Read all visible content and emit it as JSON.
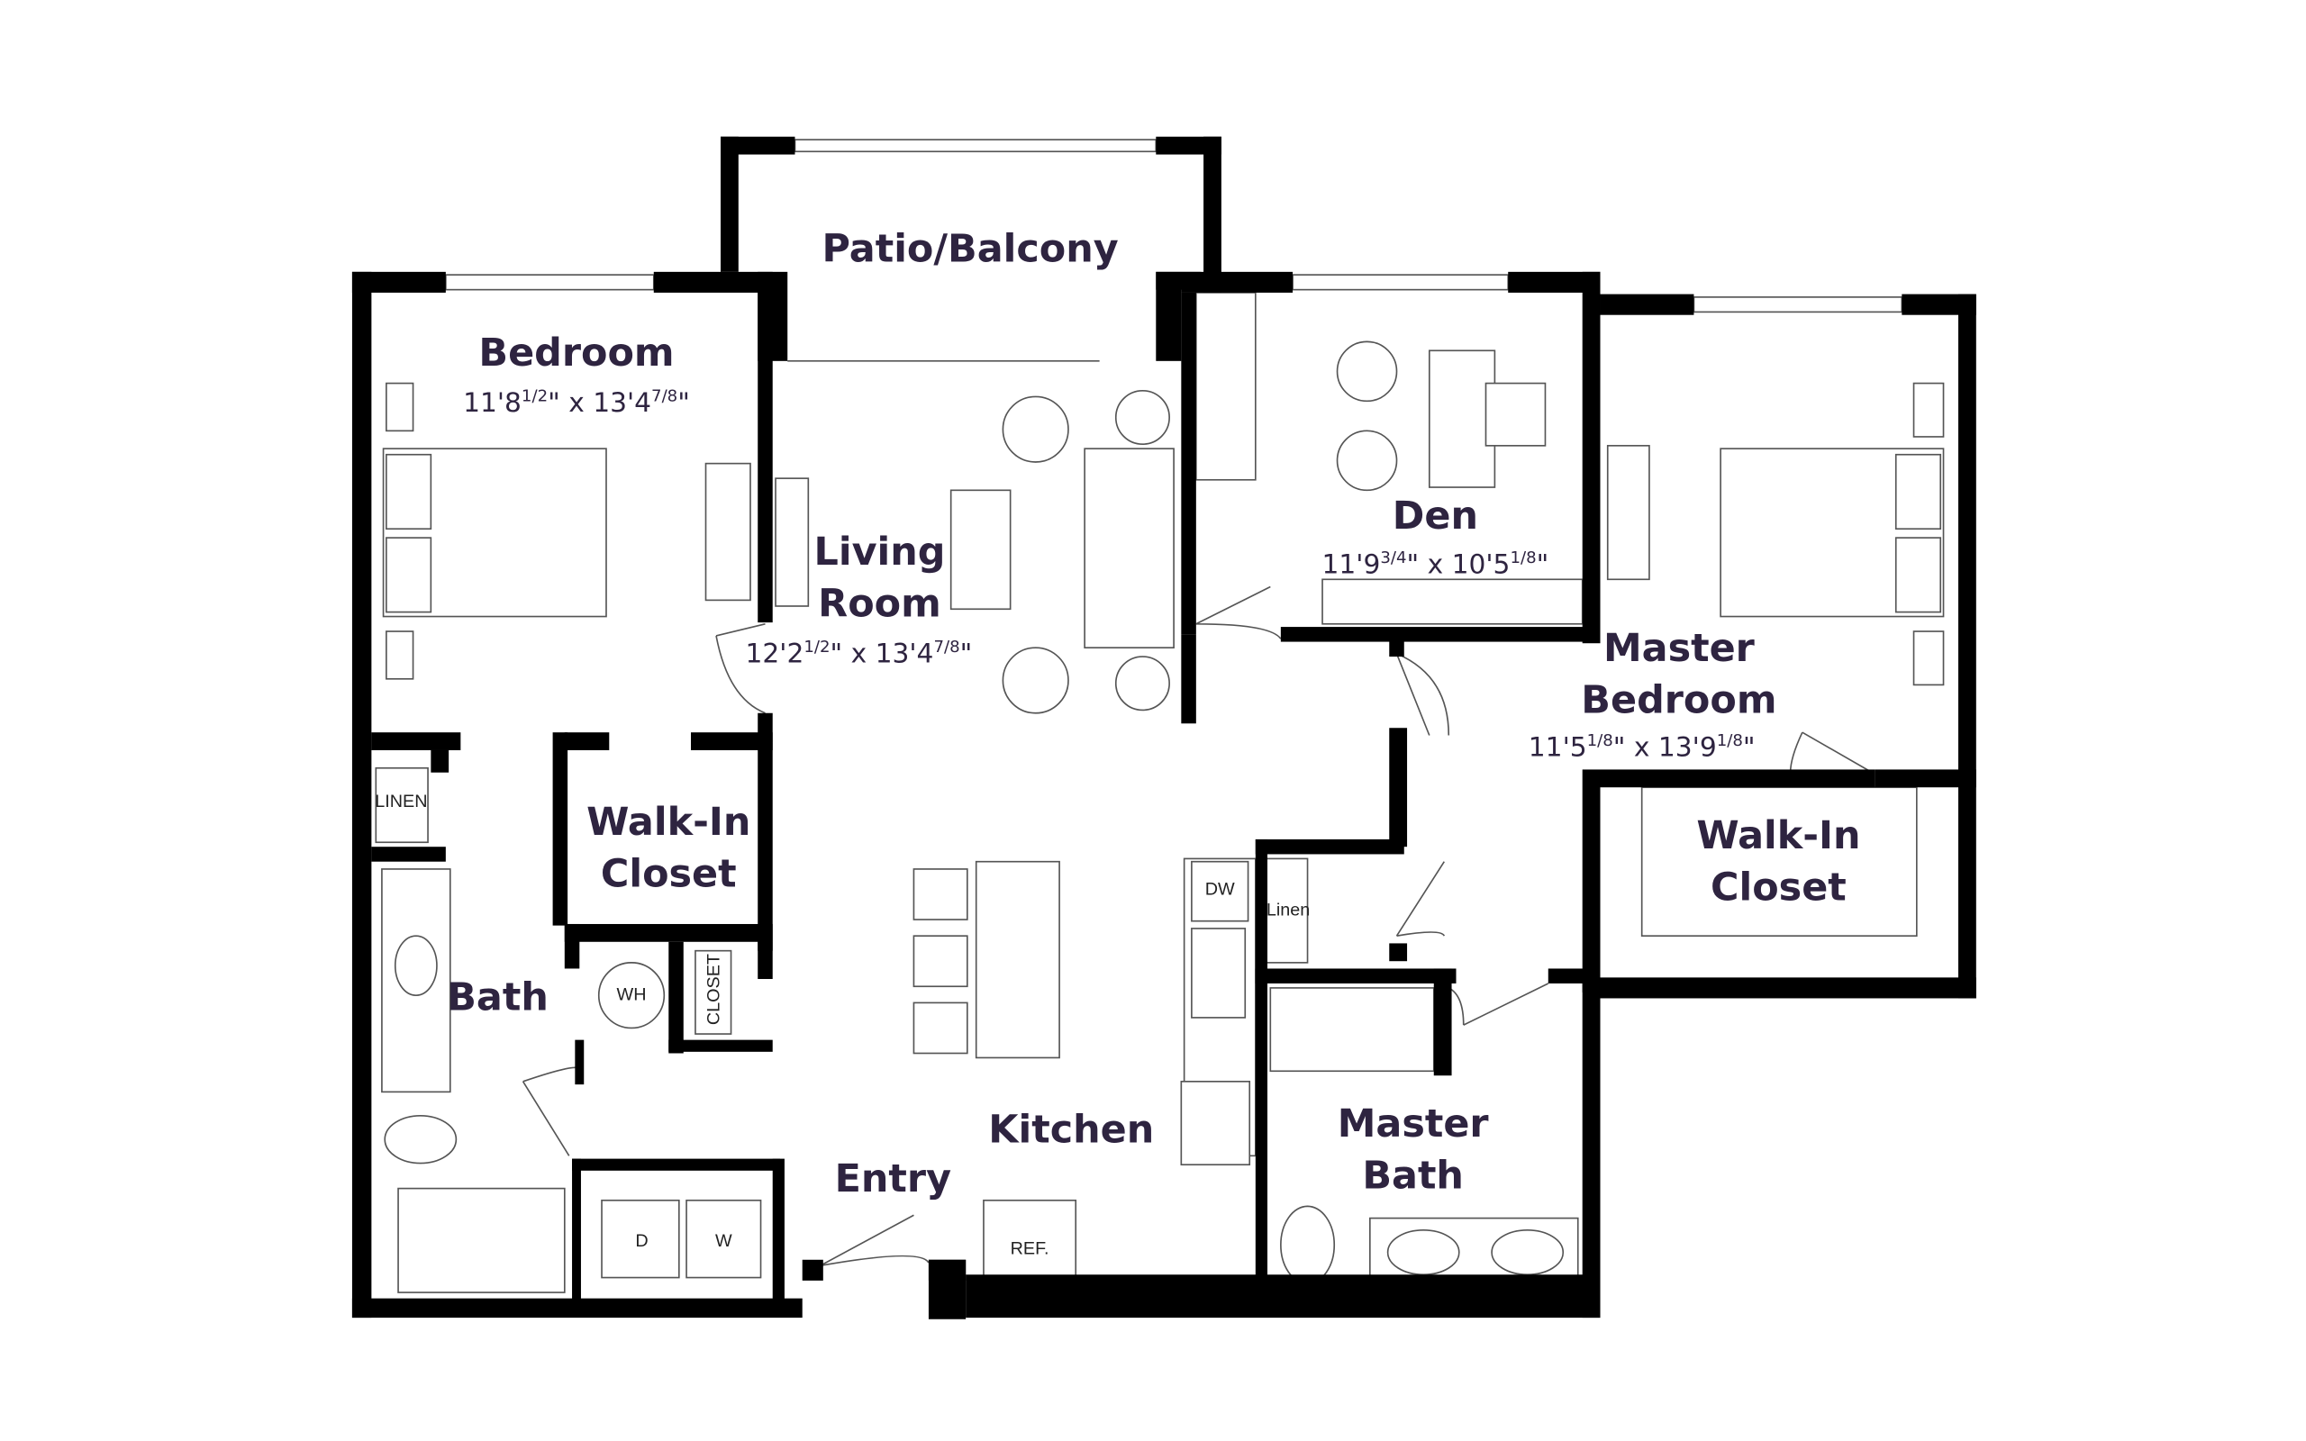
{
  "rooms": [
    {
      "label": [
        "Patio/Balcony"
      ]
    },
    {
      "label": [
        "Bedroom"
      ],
      "dims": [
        "11'8",
        "1/2",
        "\" x 13'4",
        "7/8",
        "\""
      ]
    },
    {
      "label": [
        "Living",
        "Room"
      ],
      "dims": [
        "12'2",
        "1/2",
        "\" x 13'4",
        "7/8",
        "\""
      ]
    },
    {
      "label": [
        "Den"
      ],
      "dims": [
        "11'9",
        "3/4",
        "\" x 10'5",
        "1/8",
        "\""
      ]
    },
    {
      "label": [
        "Master",
        "Bedroom"
      ],
      "dims": [
        "11'5",
        "1/8",
        "\" x 13'9",
        "1/8",
        "\""
      ]
    },
    {
      "label": [
        "Walk-In",
        "Closet"
      ]
    },
    {
      "label": [
        "Walk-In",
        "Closet"
      ]
    },
    {
      "label": [
        "Bath"
      ]
    },
    {
      "label": [
        "Kitchen"
      ]
    },
    {
      "label": [
        "Entry"
      ]
    },
    {
      "label": [
        "Master",
        "Bath"
      ]
    }
  ],
  "fixtures": [
    "LINEN",
    "Linen",
    "WH",
    "CLOSET",
    "DW",
    "D",
    "W",
    "REF."
  ]
}
